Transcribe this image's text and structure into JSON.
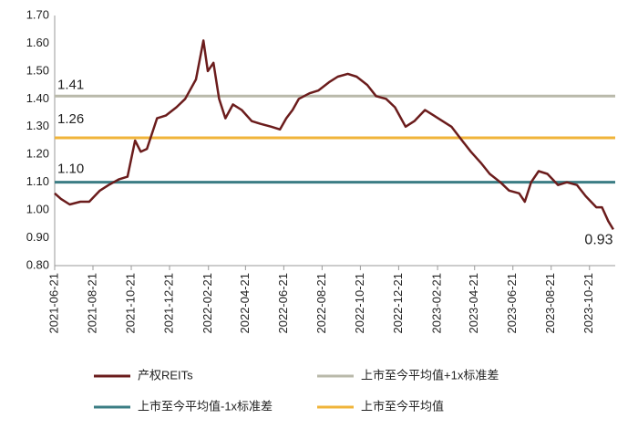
{
  "chart_data": {
    "type": "line",
    "x": [
      "2021-06-21",
      "2021-07-01",
      "2021-07-15",
      "2021-08-01",
      "2021-08-15",
      "2021-09-01",
      "2021-09-15",
      "2021-10-01",
      "2021-10-15",
      "2021-10-27",
      "2021-11-05",
      "2021-11-15",
      "2021-12-01",
      "2021-12-15",
      "2022-01-01",
      "2022-01-15",
      "2022-02-01",
      "2022-02-13",
      "2022-02-20",
      "2022-03-01",
      "2022-03-10",
      "2022-03-20",
      "2022-04-01",
      "2022-04-15",
      "2022-05-01",
      "2022-05-15",
      "2022-06-01",
      "2022-06-15",
      "2022-06-25",
      "2022-07-05",
      "2022-07-15",
      "2022-08-01",
      "2022-08-15",
      "2022-09-01",
      "2022-09-15",
      "2022-10-01",
      "2022-10-15",
      "2022-11-01",
      "2022-11-15",
      "2022-12-01",
      "2022-12-15",
      "2023-01-01",
      "2023-01-15",
      "2023-02-01",
      "2023-02-15",
      "2023-03-01",
      "2023-03-15",
      "2023-04-01",
      "2023-04-15",
      "2023-05-01",
      "2023-05-15",
      "2023-06-01",
      "2023-06-15",
      "2023-07-01",
      "2023-07-10",
      "2023-07-20",
      "2023-08-01",
      "2023-08-15",
      "2023-09-01",
      "2023-09-15",
      "2023-10-01",
      "2023-10-15",
      "2023-11-01",
      "2023-11-10",
      "2023-11-20",
      "2023-11-28"
    ],
    "series": [
      {
        "name": "产权REITs",
        "color": "#6b1c1c",
        "values": [
          1.06,
          1.04,
          1.02,
          1.03,
          1.03,
          1.07,
          1.09,
          1.11,
          1.12,
          1.25,
          1.21,
          1.22,
          1.33,
          1.34,
          1.37,
          1.4,
          1.47,
          1.61,
          1.5,
          1.53,
          1.4,
          1.33,
          1.38,
          1.36,
          1.32,
          1.31,
          1.3,
          1.29,
          1.33,
          1.36,
          1.4,
          1.42,
          1.43,
          1.46,
          1.48,
          1.49,
          1.48,
          1.45,
          1.41,
          1.4,
          1.37,
          1.3,
          1.32,
          1.36,
          1.34,
          1.32,
          1.3,
          1.25,
          1.21,
          1.17,
          1.13,
          1.1,
          1.07,
          1.06,
          1.03,
          1.1,
          1.14,
          1.13,
          1.09,
          1.1,
          1.09,
          1.05,
          1.01,
          1.01,
          0.96,
          0.93
        ],
        "end_label": "0.93"
      }
    ],
    "reference_lines": [
      {
        "name": "上市至今平均值+1x标准差",
        "color": "#b9b9aa",
        "value": 1.41,
        "value_label": "1.41"
      },
      {
        "name": "上市至今平均值-1x标准差",
        "color": "#3b7d84",
        "value": 1.1,
        "value_label": "1.10"
      },
      {
        "name": "上市至今平均值",
        "color": "#f0b43a",
        "value": 1.26,
        "value_label": "1.26"
      }
    ],
    "xlim": [
      "2021-06-21",
      "2023-12-01"
    ],
    "xticks": [
      "2021-06-21",
      "2021-08-21",
      "2021-10-21",
      "2021-12-21",
      "2022-02-21",
      "2022-04-21",
      "2022-06-21",
      "2022-08-21",
      "2022-10-21",
      "2022-12-21",
      "2023-02-21",
      "2023-04-21",
      "2023-06-21",
      "2023-08-21",
      "2023-10-21"
    ],
    "ylim": [
      0.8,
      1.7
    ],
    "yticks": [
      {
        "value": 0.8,
        "label": "0.80"
      },
      {
        "value": 0.9,
        "label": "0.90"
      },
      {
        "value": 1.0,
        "label": "1.00"
      },
      {
        "value": 1.1,
        "label": "1.10"
      },
      {
        "value": 1.2,
        "label": "1.20"
      },
      {
        "value": 1.3,
        "label": "1.30"
      },
      {
        "value": 1.4,
        "label": "1.40"
      },
      {
        "value": 1.5,
        "label": "1.50"
      },
      {
        "value": 1.6,
        "label": "1.60"
      },
      {
        "value": 1.7,
        "label": "1.70"
      }
    ]
  }
}
